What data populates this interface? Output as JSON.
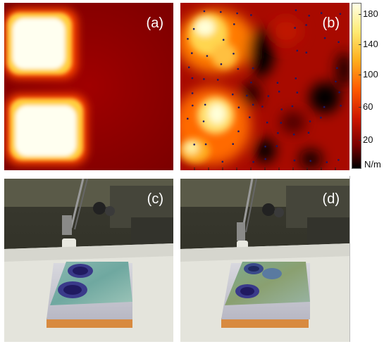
{
  "panels": {
    "a": {
      "label": "(a)"
    },
    "b": {
      "label": "(b)"
    },
    "c": {
      "label": "(c)"
    },
    "d": {
      "label": "(d)"
    }
  },
  "colorbar": {
    "ticks": [
      "180",
      "140",
      "100",
      "60",
      "20"
    ],
    "unit": "N/m",
    "colors": [
      "#ffffe6",
      "#ffea73",
      "#ffb01e",
      "#ff5a00",
      "#cc1600",
      "#7a0000",
      "#000000"
    ]
  }
}
